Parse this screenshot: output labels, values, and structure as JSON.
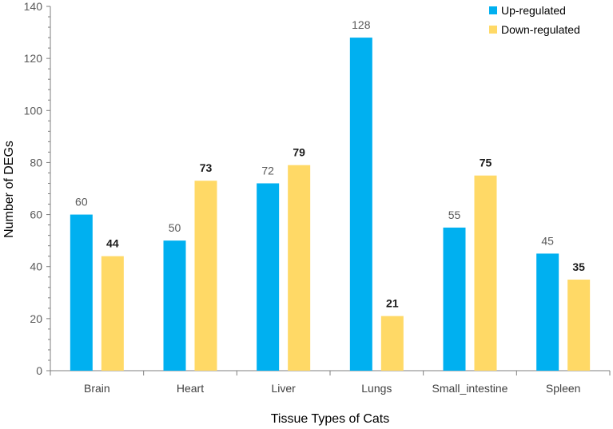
{
  "chart_data": {
    "type": "bar",
    "categories": [
      "Brain",
      "Heart",
      "Liver",
      "Lungs",
      "Small_intestine",
      "Spleen"
    ],
    "series": [
      {
        "name": "Up-regulated",
        "values": [
          60,
          50,
          72,
          128,
          55,
          45
        ],
        "color": "#00B0F0"
      },
      {
        "name": "Down-regulated",
        "values": [
          44,
          73,
          79,
          21,
          75,
          35
        ],
        "color": "#FFD966"
      }
    ],
    "title": "",
    "xlabel": "Tissue Types of Cats",
    "ylabel": "Number of DEGs",
    "ylim": [
      0,
      140
    ],
    "yticks": [
      0,
      20,
      40,
      60,
      80,
      100,
      120,
      140
    ],
    "grid": false,
    "legend_position": "top-right",
    "data_labels": true
  }
}
